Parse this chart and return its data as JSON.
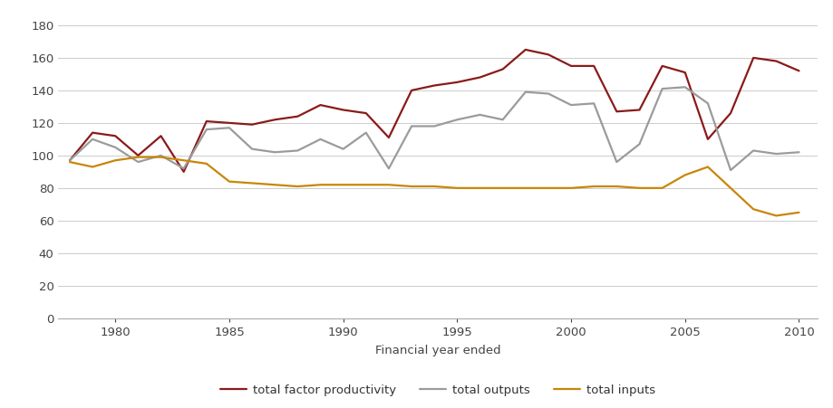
{
  "years": [
    1978,
    1979,
    1980,
    1981,
    1982,
    1983,
    1984,
    1985,
    1986,
    1987,
    1988,
    1989,
    1990,
    1991,
    1992,
    1993,
    1994,
    1995,
    1996,
    1997,
    1998,
    1999,
    2000,
    2001,
    2002,
    2003,
    2004,
    2005,
    2006,
    2007,
    2008,
    2009,
    2010
  ],
  "tfp": [
    97,
    114,
    112,
    100,
    112,
    90,
    121,
    120,
    119,
    122,
    124,
    131,
    128,
    126,
    111,
    140,
    143,
    145,
    148,
    153,
    165,
    162,
    155,
    155,
    127,
    128,
    155,
    151,
    110,
    126,
    160,
    158,
    152
  ],
  "outputs": [
    97,
    110,
    105,
    96,
    100,
    92,
    116,
    117,
    104,
    102,
    103,
    110,
    104,
    114,
    92,
    118,
    118,
    122,
    125,
    122,
    139,
    138,
    131,
    132,
    96,
    107,
    141,
    142,
    132,
    91,
    103,
    101,
    102
  ],
  "inputs": [
    96,
    93,
    97,
    99,
    99,
    97,
    95,
    84,
    83,
    82,
    81,
    82,
    82,
    82,
    82,
    81,
    81,
    80,
    80,
    80,
    80,
    80,
    80,
    81,
    81,
    80,
    80,
    88,
    93,
    80,
    67,
    63,
    65
  ],
  "tfp_color": "#8B1A1A",
  "outputs_color": "#9B9B9B",
  "inputs_color": "#C8860A",
  "xlabel": "Financial year ended",
  "yticks": [
    0,
    20,
    40,
    60,
    80,
    100,
    120,
    140,
    160,
    180
  ],
  "xticks": [
    1980,
    1985,
    1990,
    1995,
    2000,
    2005,
    2010
  ],
  "ylim": [
    0,
    188
  ],
  "xlim": [
    1977.5,
    2010.8
  ],
  "legend_labels": [
    "total factor productivity",
    "total outputs",
    "total inputs"
  ],
  "background_color": "#ffffff",
  "grid_color": "#cccccc"
}
